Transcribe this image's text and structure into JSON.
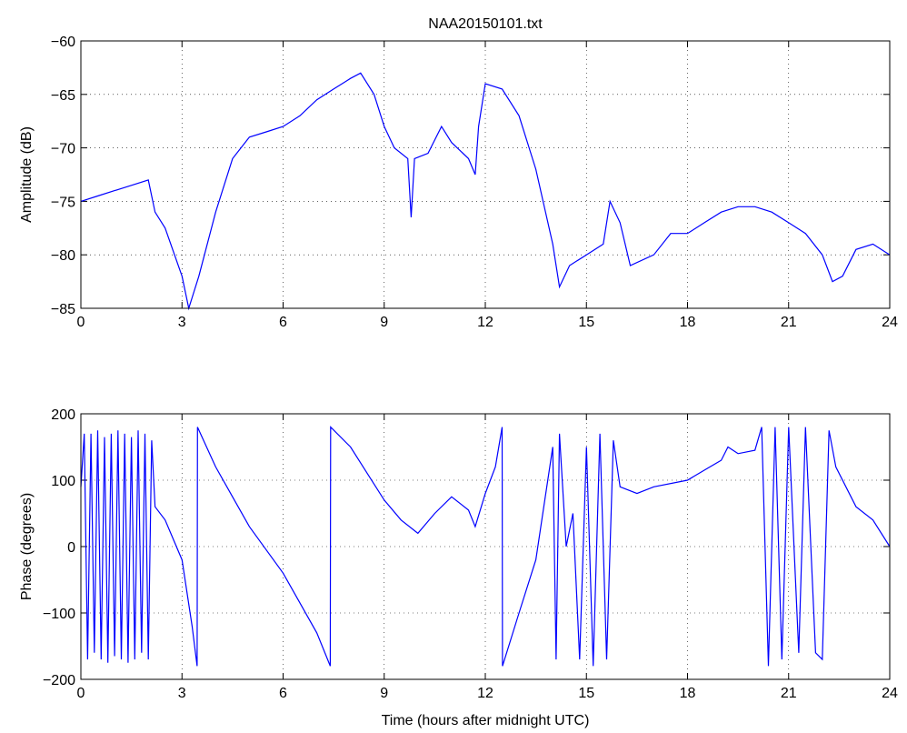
{
  "chart_data": [
    {
      "type": "line",
      "title": "NAA20150101.txt",
      "ylabel": "Amplitude (dB)",
      "color": "#0000ff",
      "grid": true,
      "xlim": [
        0,
        24
      ],
      "xticks": [
        0,
        3,
        6,
        9,
        12,
        15,
        18,
        21,
        24
      ],
      "ylim": [
        -85,
        -60
      ],
      "yticks": [
        {
          "value": -85,
          "label": "−85"
        },
        {
          "value": -80,
          "label": "−80"
        },
        {
          "value": -75,
          "label": "−75"
        },
        {
          "value": -70,
          "label": "−70"
        },
        {
          "value": -65,
          "label": "−65"
        },
        {
          "value": -60,
          "label": "−60"
        }
      ],
      "x": [
        0,
        0.5,
        1,
        1.5,
        2,
        2.2,
        2.5,
        3,
        3.2,
        3.5,
        4,
        4.5,
        5,
        5.5,
        6,
        6.5,
        7,
        7.5,
        8,
        8.3,
        8.7,
        9,
        9.3,
        9.7,
        9.8,
        9.9,
        10.3,
        10.7,
        11,
        11.5,
        11.7,
        11.8,
        12,
        12.5,
        13,
        13.5,
        14,
        14.2,
        14.5,
        15,
        15.5,
        15.7,
        16,
        16.3,
        17,
        17.5,
        18,
        18.5,
        19,
        19.5,
        20,
        20.5,
        21,
        21.5,
        22,
        22.3,
        22.6,
        23,
        23.5,
        24
      ],
      "values": [
        -75,
        -74.5,
        -74,
        -73.5,
        -73,
        -76,
        -77.5,
        -82,
        -85,
        -82,
        -76,
        -71,
        -69,
        -68.5,
        -68,
        -67,
        -65.5,
        -64.5,
        -63.5,
        -63,
        -65,
        -68,
        -70,
        -71,
        -76.5,
        -71,
        -70.5,
        -68,
        -69.5,
        -71,
        -72.5,
        -68,
        -64,
        -64.5,
        -67,
        -72,
        -79,
        -83,
        -81,
        -80,
        -79,
        -75,
        -77,
        -81,
        -80,
        -78,
        -78,
        -77,
        -76,
        -75.5,
        -75.5,
        -76,
        -77,
        -78,
        -80,
        -82.5,
        -82,
        -79.5,
        -79,
        -80
      ]
    },
    {
      "type": "line",
      "ylabel": "Phase (degrees)",
      "xlabel": "Time (hours after midnight UTC)",
      "color": "#0000ff",
      "grid": true,
      "xlim": [
        0,
        24
      ],
      "xticks": [
        0,
        3,
        6,
        9,
        12,
        15,
        18,
        21,
        24
      ],
      "ylim": [
        -200,
        200
      ],
      "yticks": [
        {
          "value": -200,
          "label": "−200"
        },
        {
          "value": -100,
          "label": "−100"
        },
        0,
        100,
        200
      ],
      "x": [
        0,
        0.1,
        0.2,
        0.3,
        0.4,
        0.5,
        0.6,
        0.7,
        0.8,
        0.9,
        1.0,
        1.1,
        1.2,
        1.3,
        1.4,
        1.5,
        1.6,
        1.7,
        1.8,
        1.9,
        2.0,
        2.1,
        2.2,
        2.5,
        3,
        3.3,
        3.45,
        3.46,
        4,
        5,
        6,
        7,
        7.4,
        7.41,
        8,
        8.5,
        9,
        9.5,
        10,
        10.5,
        11,
        11.5,
        11.7,
        12,
        12.3,
        12.5,
        12.51,
        13,
        13.5,
        14,
        14.1,
        14.2,
        14.4,
        14.6,
        14.8,
        15,
        15.2,
        15.4,
        15.6,
        15.8,
        16,
        16.5,
        17,
        18,
        18.5,
        19,
        19.2,
        19.5,
        20,
        20.2,
        20.4,
        20.6,
        20.8,
        21,
        21.3,
        21.5,
        21.8,
        22,
        22.2,
        22.4,
        23,
        23.5,
        24
      ],
      "values": [
        90,
        170,
        -170,
        170,
        -160,
        175,
        -170,
        165,
        -175,
        170,
        -165,
        175,
        -170,
        170,
        -175,
        165,
        -170,
        175,
        -160,
        170,
        -170,
        160,
        60,
        40,
        -20,
        -120,
        -180,
        180,
        120,
        30,
        -40,
        -130,
        -180,
        180,
        150,
        110,
        70,
        40,
        20,
        50,
        75,
        55,
        30,
        80,
        120,
        180,
        -180,
        -100,
        -20,
        150,
        -170,
        170,
        0,
        50,
        -170,
        150,
        -180,
        170,
        -170,
        160,
        90,
        80,
        90,
        100,
        115,
        130,
        150,
        140,
        145,
        180,
        -180,
        180,
        -170,
        180,
        -160,
        180,
        -160,
        -170,
        175,
        120,
        60,
        40,
        0
      ]
    }
  ]
}
